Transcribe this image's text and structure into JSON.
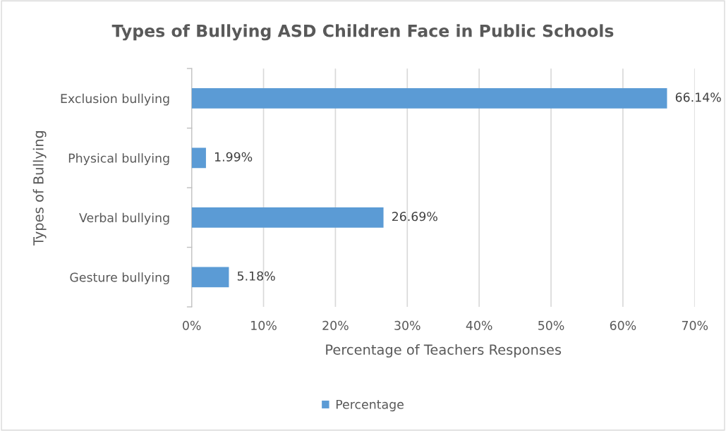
{
  "chart_data": {
    "type": "bar",
    "orientation": "horizontal",
    "title": "Types of Bullying ASD Children Face in Public Schools",
    "xlabel": "Percentage of Teachers Responses",
    "ylabel": "Types of Bullying",
    "categories": [
      "Exclusion bullying",
      "Physical bullying",
      "Verbal bullying",
      "Gesture bullying"
    ],
    "series": [
      {
        "name": "Percentage",
        "color": "#5b9bd5",
        "values": [
          66.14,
          1.99,
          26.69,
          5.18
        ],
        "value_labels": [
          "66.14%",
          "1.99%",
          "26.69%",
          "5.18%"
        ]
      }
    ],
    "xlim": [
      0,
      70
    ],
    "xticks": [
      {
        "value": 0,
        "label": "0%"
      },
      {
        "value": 10,
        "label": "10%"
      },
      {
        "value": 20,
        "label": "20%"
      },
      {
        "value": 30,
        "label": "30%"
      },
      {
        "value": 40,
        "label": "40%"
      },
      {
        "value": 50,
        "label": "50%"
      },
      {
        "value": 60,
        "label": "60%"
      },
      {
        "value": 70,
        "label": "70%"
      }
    ],
    "grid": "x",
    "legend": "bottom"
  }
}
